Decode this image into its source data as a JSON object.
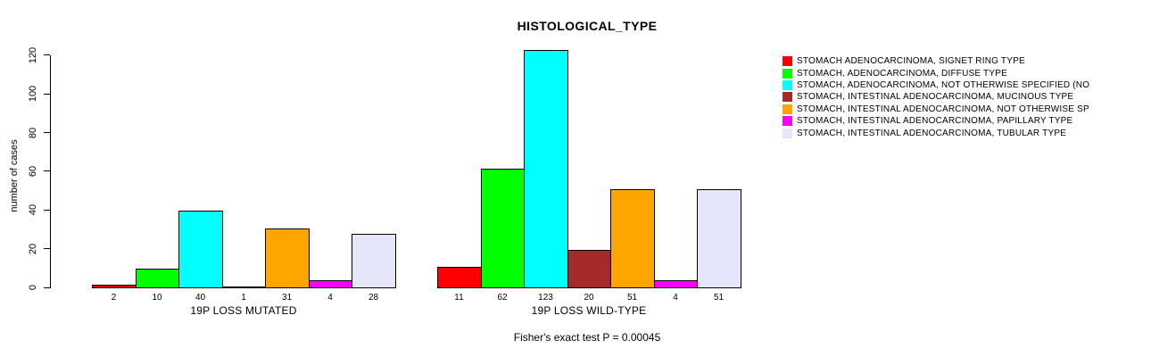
{
  "chart_data": {
    "type": "bar",
    "title": "HISTOLOGICAL_TYPE",
    "ylabel": "number of cases",
    "xlabel": "",
    "ylim": [
      0,
      123
    ],
    "yticks": [
      0,
      20,
      40,
      60,
      80,
      100,
      120
    ],
    "grid": false,
    "legend_position": "right",
    "groups": [
      "19P LOSS MUTATED",
      "19P LOSS WILD-TYPE"
    ],
    "series": [
      {
        "name": "STOMACH ADENOCARCINOMA, SIGNET RING TYPE",
        "color": "#FF0000",
        "values": [
          2,
          11
        ]
      },
      {
        "name": "STOMACH, ADENOCARCINOMA, DIFFUSE TYPE",
        "color": "#00FF00",
        "values": [
          10,
          62
        ]
      },
      {
        "name": "STOMACH, ADENOCARCINOMA, NOT OTHERWISE SPECIFIED (NO",
        "color": "#00FFFF",
        "values": [
          40,
          123
        ]
      },
      {
        "name": "STOMACH, INTESTINAL ADENOCARCINOMA, MUCINOUS TYPE",
        "color": "#A52A2A",
        "values": [
          1,
          20
        ]
      },
      {
        "name": "STOMACH, INTESTINAL ADENOCARCINOMA, NOT OTHERWISE SP",
        "color": "#FFA500",
        "values": [
          31,
          51
        ]
      },
      {
        "name": "STOMACH, INTESTINAL ADENOCARCINOMA, PAPILLARY TYPE",
        "color": "#FF00FF",
        "values": [
          4,
          4
        ]
      },
      {
        "name": "STOMACH, INTESTINAL ADENOCARCINOMA, TUBULAR TYPE",
        "color": "#E6E6FA",
        "values": [
          28,
          51
        ]
      }
    ],
    "annotation": "Fisher's exact test P = 0.00045",
    "axis_color": "#000000",
    "bar_border_color": "#000000"
  }
}
